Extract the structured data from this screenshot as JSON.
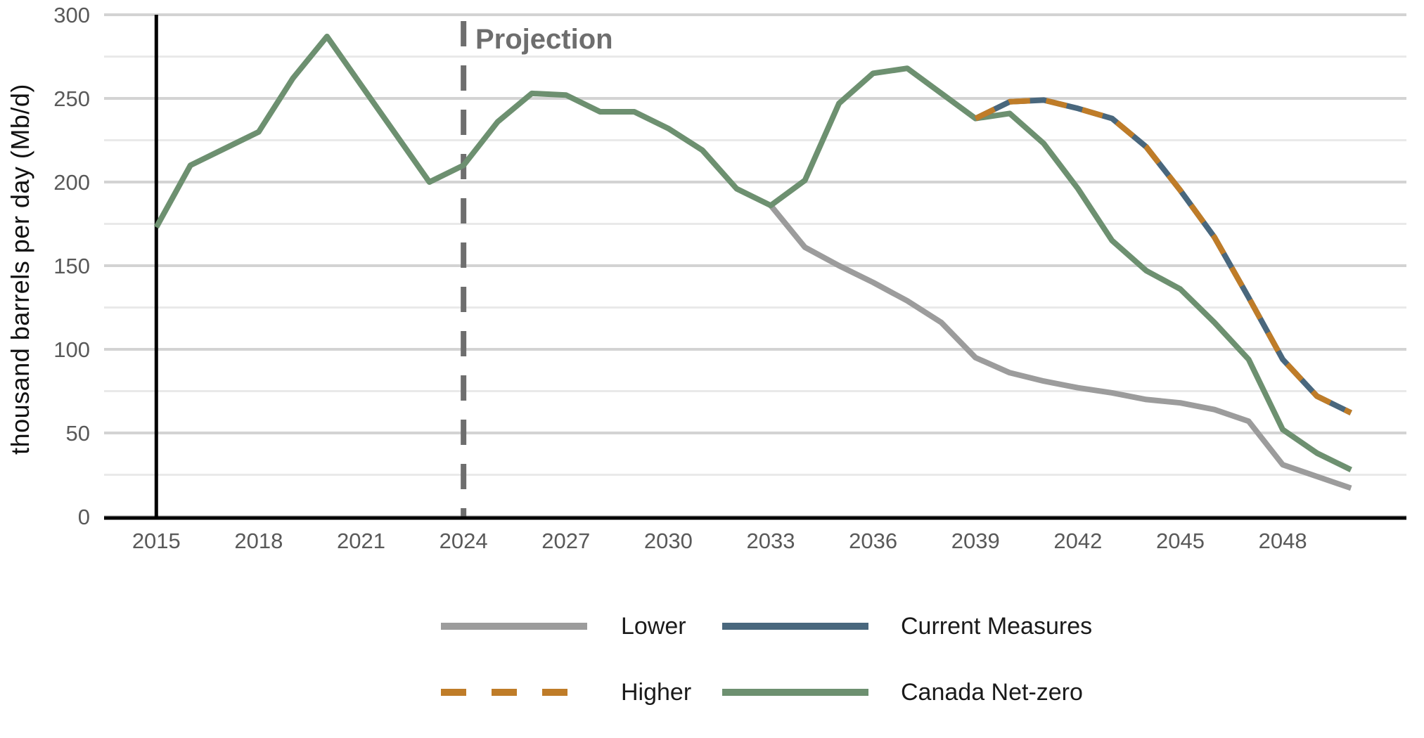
{
  "chart_data": {
    "type": "line",
    "title": "",
    "ylabel": "thousand barrels per day (Mb/d)",
    "xlabel": "",
    "ylim": [
      0,
      300
    ],
    "xlim": [
      2015,
      2050
    ],
    "yticks": [
      0,
      50,
      100,
      150,
      200,
      250,
      300
    ],
    "minor_grid_step": 25,
    "grid": "on",
    "xticks": [
      2015,
      2018,
      2021,
      2024,
      2027,
      2030,
      2033,
      2036,
      2039,
      2042,
      2045,
      2048
    ],
    "annotation": {
      "label": "Projection",
      "x": 2024,
      "color": "#6e6e6e"
    },
    "history_line_x": 2015,
    "axis_tick_color": "#595959",
    "axis_line_color": "#000000",
    "legend_position": "bottom",
    "series": [
      {
        "name": "Lower",
        "color": "#9c9c9c",
        "style": "solid",
        "x": [
          2033,
          2034,
          2035,
          2036,
          2037,
          2038,
          2039,
          2040,
          2041,
          2042,
          2043,
          2044,
          2045,
          2046,
          2047,
          2048,
          2049,
          2050
        ],
        "values": [
          186,
          161,
          150,
          140,
          129,
          116,
          95,
          86,
          81,
          77,
          74,
          70,
          68,
          64,
          57,
          31,
          24,
          17
        ]
      },
      {
        "name": "Higher",
        "color": "#bf7c28",
        "style": "dashed",
        "x": [
          2039,
          2040,
          2041,
          2042,
          2043,
          2044,
          2045,
          2046,
          2047,
          2048,
          2049,
          2050
        ],
        "values": [
          238,
          248,
          249,
          244,
          238,
          221,
          195,
          167,
          131,
          94,
          72,
          62
        ]
      },
      {
        "name": "Current Measures",
        "color": "#49677d",
        "style": "solid",
        "x": [
          2039,
          2040,
          2041,
          2042,
          2043,
          2044,
          2045,
          2046,
          2047,
          2048,
          2049,
          2050
        ],
        "values": [
          238,
          248,
          249,
          244,
          238,
          221,
          195,
          167,
          131,
          94,
          72,
          62
        ]
      },
      {
        "name": "Canada Net-zero",
        "color": "#6d9070",
        "style": "solid",
        "x": [
          2015,
          2016,
          2017,
          2018,
          2019,
          2020,
          2021,
          2022,
          2023,
          2024,
          2025,
          2026,
          2027,
          2028,
          2029,
          2030,
          2031,
          2032,
          2033,
          2034,
          2035,
          2036,
          2037,
          2038,
          2039,
          2040,
          2041,
          2042,
          2043,
          2044,
          2045,
          2046,
          2047,
          2048,
          2049,
          2050
        ],
        "values": [
          173,
          210,
          220,
          230,
          262,
          287,
          258,
          229,
          200,
          210,
          236,
          253,
          252,
          242,
          242,
          232,
          219,
          196,
          186,
          201,
          247,
          265,
          268,
          253,
          238,
          241,
          223,
          196,
          165,
          147,
          136,
          116,
          94,
          52,
          38,
          28
        ]
      }
    ]
  }
}
